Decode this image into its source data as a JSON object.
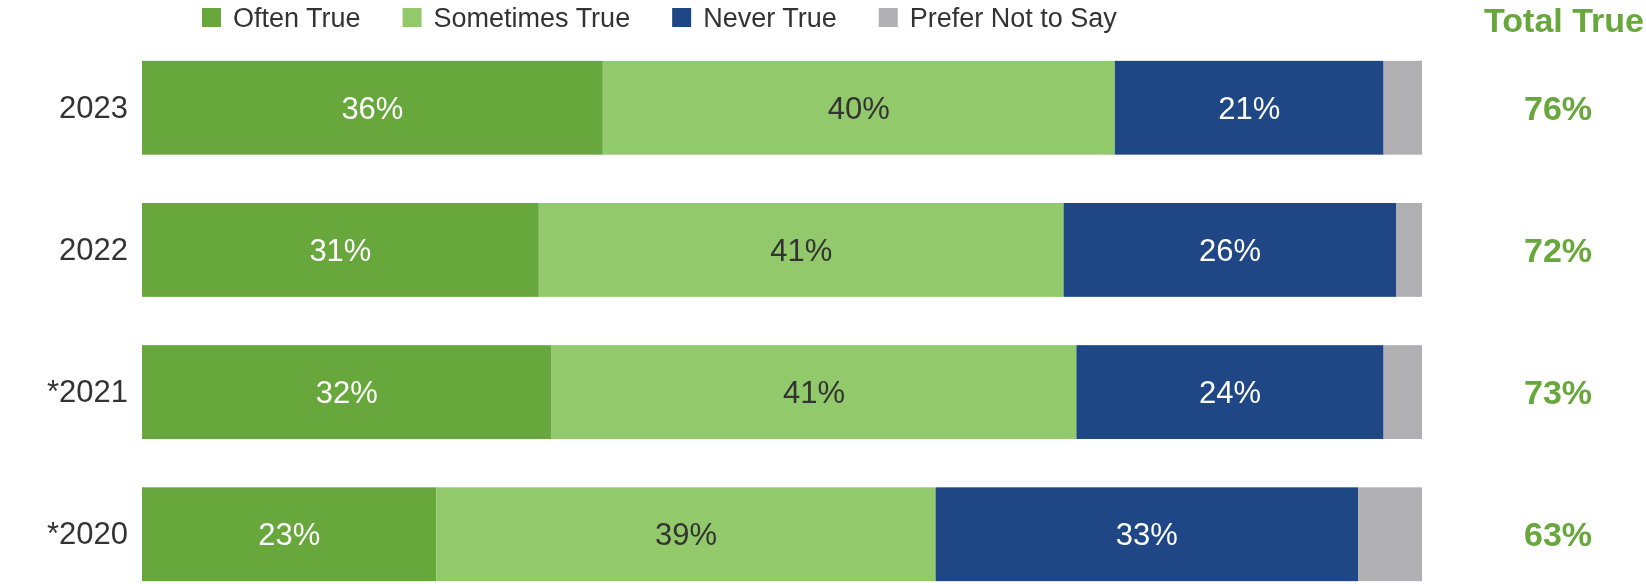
{
  "chart_data": {
    "type": "bar",
    "orientation": "horizontal",
    "stacked": true,
    "categories": [
      "2023",
      "2022",
      "*2021",
      "*2020"
    ],
    "xlim": [
      0,
      100
    ],
    "tick_labels": "y",
    "legend": "top",
    "series": [
      {
        "name": "Often True",
        "color": "#67a73c",
        "values": [
          36,
          31,
          32,
          23
        ],
        "value_labels": [
          "36%",
          "31%",
          "32%",
          "23%"
        ]
      },
      {
        "name": "Sometimes True",
        "color": "#92c96b",
        "values": [
          40,
          41,
          41,
          39
        ],
        "value_labels": [
          "40%",
          "41%",
          "41%",
          "39%"
        ]
      },
      {
        "name": "Never True",
        "color": "#1f4685",
        "values": [
          21,
          26,
          24,
          33
        ],
        "value_labels": [
          "21%",
          "26%",
          "24%",
          "33%"
        ]
      },
      {
        "name": "Prefer Not to Say",
        "color": "#b0b0b2",
        "values": [
          3,
          2,
          3,
          5
        ],
        "value_labels": [
          null,
          null,
          null,
          null
        ]
      }
    ],
    "annotations": [
      "Total True",
      "76%",
      "72%",
      "73%",
      "63%"
    ]
  }
}
